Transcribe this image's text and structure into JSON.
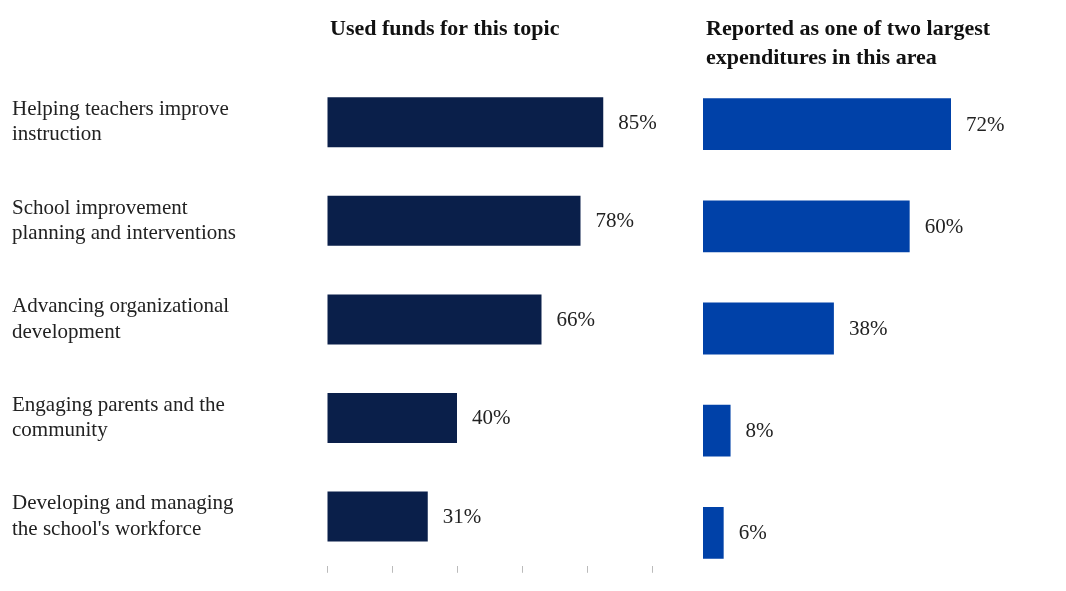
{
  "chart_data": [
    {
      "type": "bar",
      "orientation": "horizontal",
      "title": "Used funds for this topic",
      "categories": [
        "Helping teachers improve instruction",
        "School improvement planning and interventions",
        "Advancing organizational development",
        "Engaging parents and the community",
        "Developing and managing the school's workforce"
      ],
      "values": [
        85,
        78,
        66,
        40,
        31
      ],
      "value_labels": [
        "85%",
        "78%",
        "66%",
        "40%",
        "31%"
      ],
      "color": "#0a1f4a",
      "xticks": [
        {
          "value": 0,
          "label": null
        },
        {
          "value": 20,
          "label": null
        },
        {
          "value": 40,
          "label": null
        },
        {
          "value": 60,
          "label": null
        },
        {
          "value": 80,
          "label": null
        },
        {
          "value": 100,
          "label": null
        }
      ],
      "tick_labels": "y"
    },
    {
      "type": "bar",
      "orientation": "horizontal",
      "title": "Reported as one of two largest expenditures in this area",
      "values": [
        72,
        60,
        38,
        8,
        6
      ],
      "value_labels": [
        "72%",
        "60%",
        "38%",
        "8%",
        "6%"
      ],
      "color": "#0041a8",
      "tick_labels": false
    }
  ]
}
